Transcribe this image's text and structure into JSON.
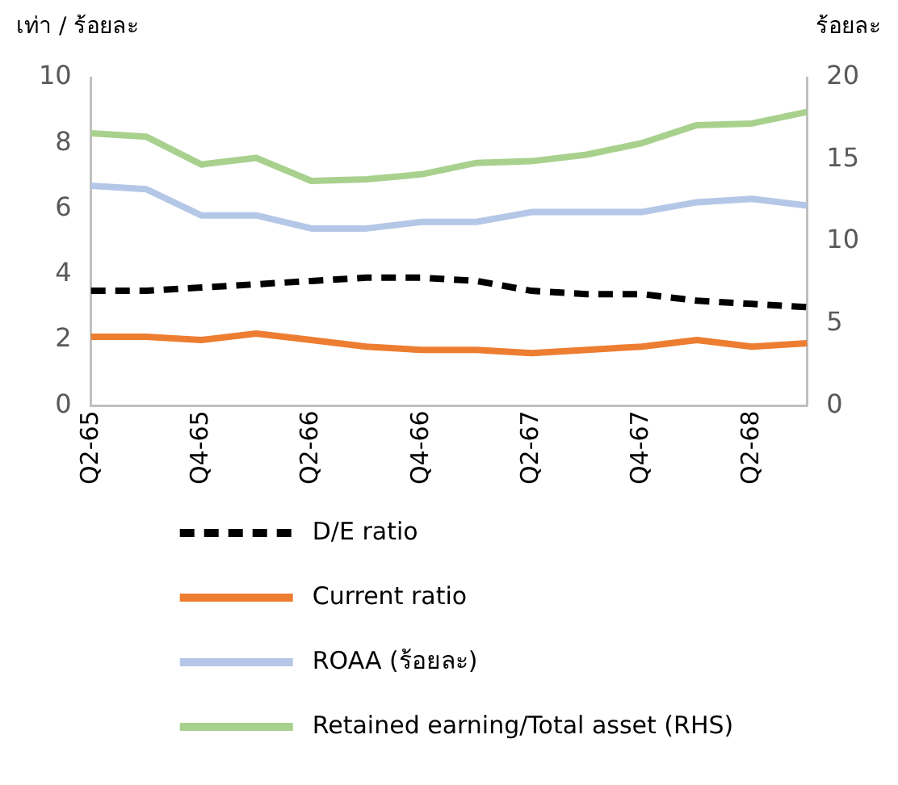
{
  "chart_data": {
    "type": "line",
    "ylabel": "เท่า / ร้อยละ",
    "y2label": "ร้อยละ",
    "categories": [
      "Q2-65",
      null,
      "Q4-65",
      null,
      "Q2-66",
      null,
      "Q4-66",
      null,
      "Q2-67",
      null,
      "Q4-67",
      null,
      "Q2-68",
      null
    ],
    "series": [
      {
        "name": "D/E ratio",
        "color": "#000000",
        "line_style": "dashed",
        "values": [
          3.5,
          3.5,
          3.6,
          3.7,
          3.8,
          3.9,
          3.9,
          3.8,
          3.5,
          3.4,
          3.4,
          3.2,
          3.1,
          3.0
        ]
      },
      {
        "name": "Current ratio",
        "color": "#ed7d31",
        "values": [
          2.1,
          2.1,
          2.0,
          2.2,
          2.0,
          1.8,
          1.7,
          1.7,
          1.6,
          1.7,
          1.8,
          2.0,
          1.8,
          1.9
        ]
      },
      {
        "name": "ROAA (ร้อยละ)",
        "color": "#b4c7e7",
        "values": [
          6.7,
          6.6,
          5.8,
          5.8,
          5.4,
          5.4,
          5.6,
          5.6,
          5.9,
          5.9,
          5.9,
          6.2,
          6.3,
          6.1
        ]
      },
      {
        "name": "Retained earning/Total asset (RHS)",
        "color": "#a9d18e",
        "axis": "y2",
        "values": [
          16.6,
          16.4,
          14.7,
          15.1,
          13.7,
          13.8,
          14.1,
          14.8,
          14.9,
          15.3,
          16.0,
          17.1,
          17.2,
          17.9
        ]
      }
    ],
    "ylim": [
      0,
      10
    ],
    "yticks": [
      0,
      2,
      4,
      6,
      8,
      10
    ],
    "y2lim": [
      0,
      20
    ],
    "y2ticks": [
      0,
      5,
      10,
      15,
      20
    ],
    "grid": false,
    "legend": "bottom",
    "line_style": "solid",
    "marker": "none"
  }
}
